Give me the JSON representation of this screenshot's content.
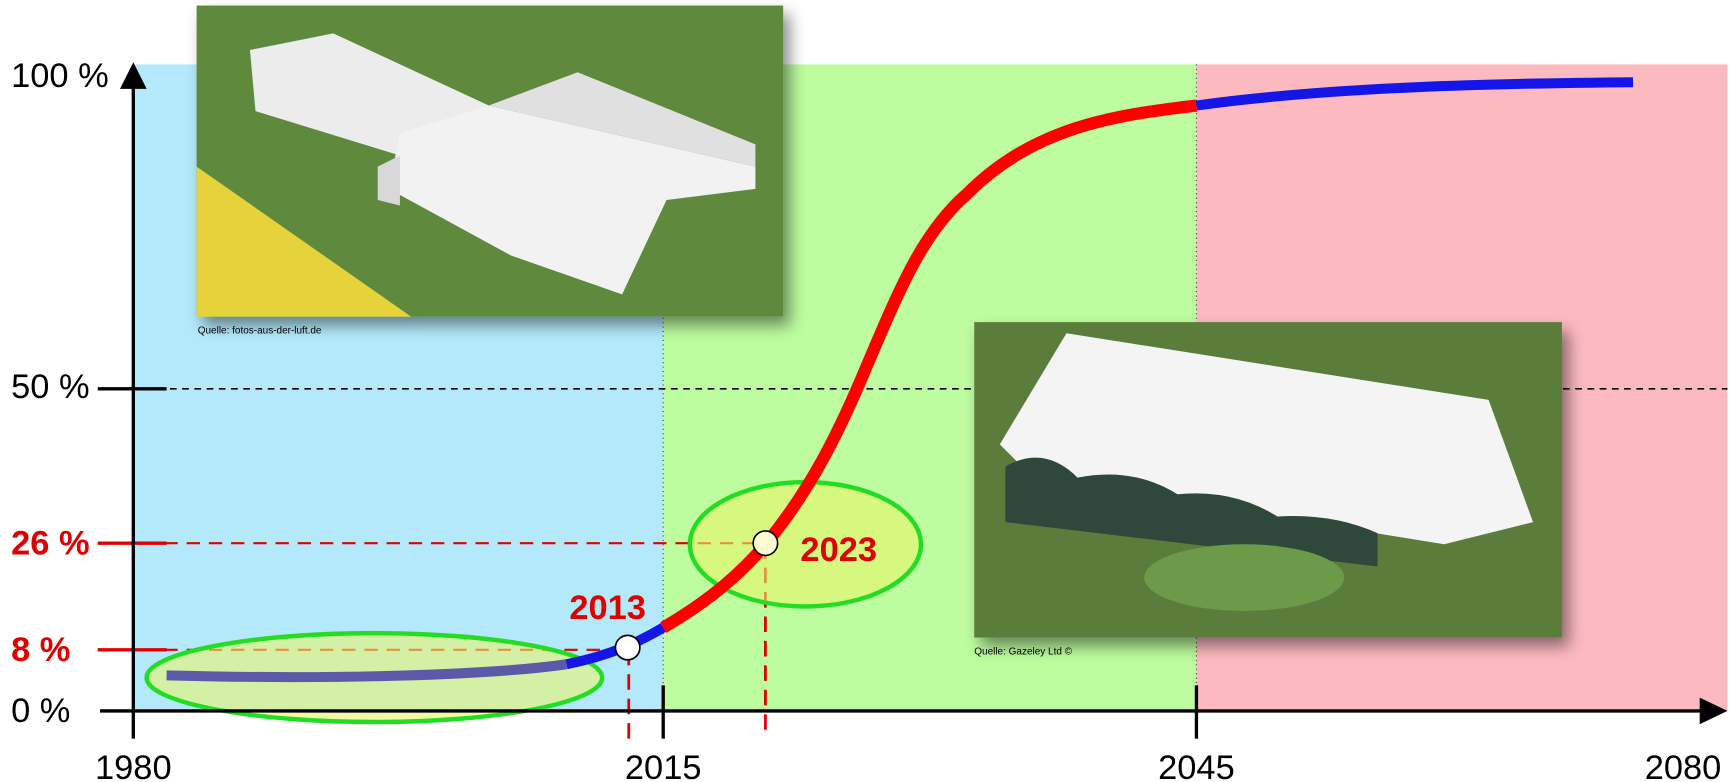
{
  "y_axis": {
    "labels": [
      "100 %",
      "50 %",
      "26 %",
      "8 %",
      "0 %"
    ]
  },
  "x_axis": {
    "labels": [
      "1980",
      "2015",
      "2045",
      "2080"
    ]
  },
  "callouts": [
    "2013",
    "2023"
  ],
  "photos": [
    {
      "caption": "Quelle: fotos-aus-der-luft.de"
    },
    {
      "caption": "Quelle: Gazeley Ltd ©"
    }
  ]
}
